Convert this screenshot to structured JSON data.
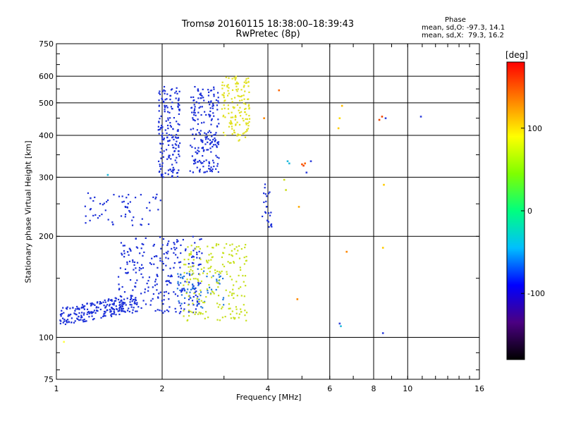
{
  "title": {
    "line1": "Tromsø 20160115 18:38:00–18:39:43",
    "line2": "RwPretec (8p)"
  },
  "phase_stats": {
    "heading": "Phase",
    "o_line": "mean, sd,O: -97.3, 14.1",
    "x_line": "mean, sd,X:  79.3, 16.2"
  },
  "colorbar": {
    "label": "[deg]",
    "ticks": [
      "100",
      "0",
      "-100"
    ],
    "tick_values": [
      100,
      0,
      -100
    ],
    "range": [
      -180,
      180
    ],
    "colors": [
      "#000000",
      "#4b0082",
      "#0000ff",
      "#00bfff",
      "#00ff7f",
      "#7fff00",
      "#ffff00",
      "#ff7f00",
      "#ff0000"
    ]
  },
  "chart_data": {
    "type": "scatter",
    "title": "Tromsø 20160115 18:38:00–18:39:43",
    "subtitle": "RwPretec (8p)",
    "xlabel": "Frequency [MHz]",
    "ylabel": "Stationary phase Virtual Height [km]",
    "x_scale": "log",
    "y_scale": "log",
    "xlim": [
      1,
      16
    ],
    "ylim": [
      75,
      750
    ],
    "x_ticks": [
      1,
      2,
      4,
      6,
      8,
      10,
      16
    ],
    "x_tick_labels": [
      "1",
      "2",
      "4",
      "6",
      "8",
      "10",
      "16"
    ],
    "y_ticks": [
      75,
      100,
      200,
      300,
      400,
      500,
      600,
      750
    ],
    "y_tick_labels": [
      "75",
      "100",
      "200",
      "300",
      "400",
      "500",
      "600",
      "750"
    ],
    "grid": true,
    "clusters": [
      {
        "name": "",
        "color": "#1a2ed8",
        "n": 220,
        "x": [
          1.02,
          1.7
        ],
        "y": [
          108,
          135
        ],
        "shape": "rising"
      },
      {
        "name": "",
        "color": "#1a2ed8",
        "n": 260,
        "x": [
          1.5,
          2.6
        ],
        "y": [
          118,
          200
        ]
      },
      {
        "name": "",
        "color": "#1a2ed8",
        "n": 180,
        "x": [
          1.95,
          2.25
        ],
        "y": [
          300,
          560
        ]
      },
      {
        "name": "",
        "color": "#1a2ed8",
        "n": 200,
        "x": [
          2.4,
          2.9
        ],
        "y": [
          310,
          560
        ]
      },
      {
        "name": "",
        "color": "#1a2ed8",
        "n": 60,
        "x": [
          1.2,
          2.0
        ],
        "y": [
          215,
          270
        ]
      },
      {
        "name": "",
        "color": "#2277dd",
        "n": 60,
        "x": [
          2.2,
          3.0
        ],
        "y": [
          122,
          160
        ]
      },
      {
        "name": "",
        "color": "#c8e020",
        "n": 200,
        "x": [
          2.3,
          3.5
        ],
        "y": [
          112,
          190
        ]
      },
      {
        "name": "",
        "color": "#e0e020",
        "n": 140,
        "x": [
          2.95,
          3.55
        ],
        "y": [
          385,
          600
        ]
      },
      {
        "name": "",
        "color": "#1a2ed8",
        "n": 25,
        "x": [
          3.85,
          4.1
        ],
        "y": [
          210,
          290
        ]
      }
    ],
    "points": [
      {
        "x": 4.55,
        "y": 335,
        "c": "#22bbdd"
      },
      {
        "x": 4.6,
        "y": 330,
        "c": "#22bbdd"
      },
      {
        "x": 5.0,
        "y": 328,
        "c": "#ff5500"
      },
      {
        "x": 5.05,
        "y": 325,
        "c": "#ee4400"
      },
      {
        "x": 5.1,
        "y": 330,
        "c": "#ff6600"
      },
      {
        "x": 5.15,
        "y": 310,
        "c": "#3344dd"
      },
      {
        "x": 5.3,
        "y": 335,
        "c": "#3344dd"
      },
      {
        "x": 4.5,
        "y": 275,
        "c": "#ccdd22"
      },
      {
        "x": 4.45,
        "y": 295,
        "c": "#ccdd22"
      },
      {
        "x": 3.9,
        "y": 450,
        "c": "#ff8800"
      },
      {
        "x": 4.3,
        "y": 545,
        "c": "#ff6600"
      },
      {
        "x": 4.9,
        "y": 245,
        "c": "#ffaa00"
      },
      {
        "x": 4.85,
        "y": 130,
        "c": "#ff8800"
      },
      {
        "x": 6.5,
        "y": 490,
        "c": "#ffbb00"
      },
      {
        "x": 6.4,
        "y": 450,
        "c": "#ffdd00"
      },
      {
        "x": 6.35,
        "y": 420,
        "c": "#ffcc00"
      },
      {
        "x": 6.4,
        "y": 110,
        "c": "#3344dd"
      },
      {
        "x": 6.45,
        "y": 108,
        "c": "#22bbdd"
      },
      {
        "x": 6.7,
        "y": 180,
        "c": "#ff8800"
      },
      {
        "x": 8.3,
        "y": 445,
        "c": "#ee4400"
      },
      {
        "x": 8.45,
        "y": 455,
        "c": "#ee4400"
      },
      {
        "x": 8.65,
        "y": 450,
        "c": "#3344dd"
      },
      {
        "x": 8.55,
        "y": 285,
        "c": "#ffcc00"
      },
      {
        "x": 8.5,
        "y": 185,
        "c": "#ffcc00"
      },
      {
        "x": 8.5,
        "y": 103,
        "c": "#3344dd"
      },
      {
        "x": 10.9,
        "y": 455,
        "c": "#3344dd"
      },
      {
        "x": 1.05,
        "y": 97,
        "c": "#ffff44"
      },
      {
        "x": 1.4,
        "y": 305,
        "c": "#22bbdd"
      },
      {
        "x": 1.25,
        "y": 260,
        "c": "#3344dd"
      }
    ]
  }
}
